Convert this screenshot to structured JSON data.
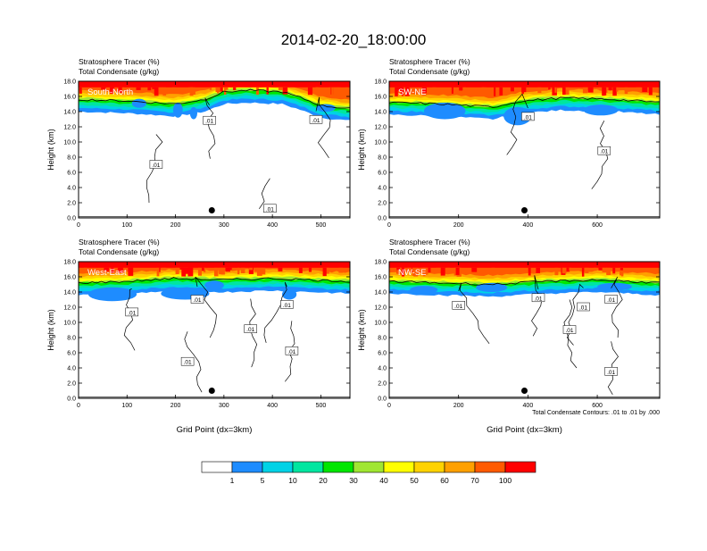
{
  "figure": {
    "title": "2014-02-20_18:00:00",
    "contour_note": "Total Condensate Contours: .01 to .01 by .000"
  },
  "colors": {
    "fill_levels": [
      "#ffffff",
      "#1e8cff",
      "#00d2e6",
      "#00e6a0",
      "#00e600",
      "#a0e632",
      "#ffff00",
      "#ffd200",
      "#ffa000",
      "#ff5a00",
      "#ff0000"
    ]
  },
  "colorbar": {
    "labels": [
      "1",
      "5",
      "10",
      "20",
      "30",
      "40",
      "50",
      "60",
      "70",
      "100"
    ]
  },
  "chart_data": [
    {
      "type": "heatmap",
      "section": "South-North",
      "title_line1": "Stratosphere Tracer   (%)",
      "title_line2": "Total Condensate   (g/kg)",
      "ylabel": "Height (km)",
      "xlabel": "",
      "xlim": [
        0,
        560
      ],
      "ylim": [
        0,
        18
      ],
      "xticks": [
        0,
        100,
        200,
        300,
        400,
        500
      ],
      "yticks": [
        0,
        2,
        4,
        6,
        8,
        10,
        12,
        14,
        16,
        18
      ],
      "tropopause_km": [
        [
          0,
          15.6
        ],
        [
          100,
          15.4
        ],
        [
          200,
          15.0
        ],
        [
          260,
          15.6
        ],
        [
          300,
          16.6
        ],
        [
          350,
          16.8
        ],
        [
          420,
          16.6
        ],
        [
          460,
          15.8
        ],
        [
          500,
          14.8
        ],
        [
          560,
          14.4
        ]
      ],
      "cloud_patches": [
        [
          110,
          14.5,
          30,
          1.2
        ],
        [
          195,
          13.2,
          20,
          2.0
        ],
        [
          230,
          13.0,
          15,
          1.6
        ],
        [
          490,
          14.0,
          40,
          1.0
        ]
      ],
      "contour_labels": [
        {
          "x": 160,
          "y": 7.0,
          "text": ".01"
        },
        {
          "x": 270,
          "y": 12.8,
          "text": ".01"
        },
        {
          "x": 395,
          "y": 1.2,
          "text": ".01"
        },
        {
          "x": 490,
          "y": 12.9,
          "text": ".01"
        }
      ],
      "marker": {
        "x": 275,
        "y": 1.0
      }
    },
    {
      "type": "heatmap",
      "section": "SW-NE",
      "title_line1": "Stratosphere Tracer   (%)",
      "title_line2": "Total Condensate   (g/kg)",
      "ylabel": "Height (km)",
      "xlabel": "",
      "xlim": [
        0,
        780
      ],
      "ylim": [
        0,
        18
      ],
      "xticks": [
        0,
        200,
        400,
        600
      ],
      "yticks": [
        0,
        2,
        4,
        6,
        8,
        10,
        12,
        14,
        16,
        18
      ],
      "tropopause_km": [
        [
          0,
          15.2
        ],
        [
          150,
          15.0
        ],
        [
          300,
          14.6
        ],
        [
          380,
          15.4
        ],
        [
          500,
          15.8
        ],
        [
          650,
          15.6
        ],
        [
          780,
          15.2
        ]
      ],
      "cloud_patches": [
        [
          100,
          13.0,
          120,
          2.2
        ],
        [
          330,
          12.2,
          80,
          2.4
        ],
        [
          560,
          13.5,
          100,
          1.4
        ]
      ],
      "contour_labels": [
        {
          "x": 400,
          "y": 13.3,
          "text": ".01"
        },
        {
          "x": 620,
          "y": 8.8,
          "text": ".01"
        }
      ],
      "marker": {
        "x": 390,
        "y": 1.0
      }
    },
    {
      "type": "heatmap",
      "section": "West-East",
      "title_line1": "Stratosphere Tracer   (%)",
      "title_line2": "Total Condensate   (g/kg)",
      "ylabel": "Height (km)",
      "xlabel": "Grid Point (dx=3km)",
      "xlim": [
        0,
        560
      ],
      "ylim": [
        0,
        18
      ],
      "xticks": [
        0,
        100,
        200,
        300,
        400,
        500
      ],
      "yticks": [
        0,
        2,
        4,
        6,
        8,
        10,
        12,
        14,
        16,
        18
      ],
      "tropopause_km": [
        [
          0,
          15.2
        ],
        [
          100,
          15.4
        ],
        [
          200,
          15.8
        ],
        [
          300,
          15.6
        ],
        [
          400,
          15.8
        ],
        [
          560,
          15.4
        ]
      ],
      "cloud_patches": [
        [
          20,
          12.8,
          100,
          1.8
        ],
        [
          170,
          13.0,
          100,
          1.6
        ],
        [
          260,
          14.3,
          40,
          1.2
        ],
        [
          420,
          13.0,
          30,
          1.4
        ]
      ],
      "contour_labels": [
        {
          "x": 110,
          "y": 11.3,
          "text": ".01"
        },
        {
          "x": 245,
          "y": 13.0,
          "text": ".01"
        },
        {
          "x": 430,
          "y": 12.3,
          "text": ".01"
        },
        {
          "x": 355,
          "y": 9.1,
          "text": ".01"
        },
        {
          "x": 225,
          "y": 4.8,
          "text": ".01"
        },
        {
          "x": 440,
          "y": 6.2,
          "text": ".01"
        }
      ],
      "marker": {
        "x": 275,
        "y": 1.0
      }
    },
    {
      "type": "heatmap",
      "section": "NW-SE",
      "title_line1": "Stratosphere Tracer   (%)",
      "title_line2": "Total Condensate   (g/kg)",
      "ylabel": "Height (km)",
      "xlabel": "Grid Point (dx=3km)",
      "xlim": [
        0,
        780
      ],
      "ylim": [
        0,
        18
      ],
      "xticks": [
        0,
        200,
        400,
        600
      ],
      "yticks": [
        0,
        2,
        4,
        6,
        8,
        10,
        12,
        14,
        16,
        18
      ],
      "tropopause_km": [
        [
          0,
          15.4
        ],
        [
          150,
          15.2
        ],
        [
          300,
          15.0
        ],
        [
          450,
          15.4
        ],
        [
          600,
          15.6
        ],
        [
          780,
          15.2
        ]
      ],
      "cloud_patches": [
        [
          60,
          13.8,
          80,
          1.0
        ],
        [
          250,
          14.0,
          90,
          1.2
        ],
        [
          600,
          14.2,
          100,
          1.0
        ]
      ],
      "contour_labels": [
        {
          "x": 200,
          "y": 12.2,
          "text": ".01"
        },
        {
          "x": 430,
          "y": 13.2,
          "text": ".01"
        },
        {
          "x": 560,
          "y": 12.0,
          "text": ".01"
        },
        {
          "x": 640,
          "y": 13.0,
          "text": ".01"
        },
        {
          "x": 520,
          "y": 9.0,
          "text": ".01"
        },
        {
          "x": 640,
          "y": 3.5,
          "text": ".01"
        }
      ],
      "marker": {
        "x": 390,
        "y": 1.0
      }
    }
  ]
}
